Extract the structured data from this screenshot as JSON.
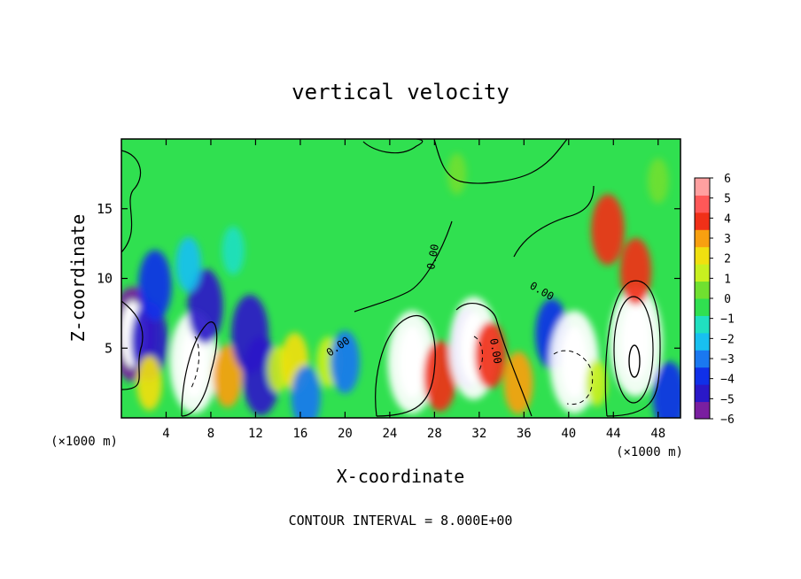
{
  "chart_data": {
    "type": "heatmap",
    "title": "vertical velocity",
    "xlabel": "X-coordinate",
    "ylabel": "Z-coordinate",
    "x_unit": "(×1000 m)",
    "z_unit": "(×1000 m)",
    "xlim": [
      0,
      50
    ],
    "zlim": [
      0,
      20
    ],
    "x_ticks": [
      4,
      8,
      12,
      16,
      20,
      24,
      28,
      32,
      36,
      40,
      44,
      48
    ],
    "z_ticks": [
      5,
      10,
      15
    ],
    "colorbar": {
      "ticks": [
        6,
        5,
        4,
        3,
        2,
        1,
        0,
        -1,
        -2,
        -3,
        -4,
        -5,
        -6
      ],
      "range": [
        -6,
        6
      ],
      "colors": [
        "#7a1fa0",
        "#2a18c8",
        "#1030e8",
        "#1a78f0",
        "#18c0f0",
        "#20e0c0",
        "#30e050",
        "#70e030",
        "#c8f020",
        "#f0e010",
        "#f8a010",
        "#f03018",
        "#ff5858",
        "#ffa0a0"
      ]
    },
    "contour_labels": [
      "0.00",
      "0.00",
      "0.00",
      "0.00"
    ],
    "footer": "CONTOUR INTERVAL = 8.000E+00",
    "cells": [
      {
        "x": 1.0,
        "z": 6.0,
        "w": -7.0
      },
      {
        "x": 2.5,
        "z": 5.5,
        "w": -5.0
      },
      {
        "x": 3.0,
        "z": 9.5,
        "w": -4.0
      },
      {
        "x": 2.5,
        "z": 2.5,
        "w": 2.0
      },
      {
        "x": 6.5,
        "z": 4.0,
        "w": -8.0
      },
      {
        "x": 7.5,
        "z": 8.0,
        "w": -4.5
      },
      {
        "x": 6.0,
        "z": 11.0,
        "w": -2.0
      },
      {
        "x": 9.5,
        "z": 3.0,
        "w": 3.0
      },
      {
        "x": 11.5,
        "z": 6.0,
        "w": -5.0
      },
      {
        "x": 12.5,
        "z": 3.0,
        "w": -5.0
      },
      {
        "x": 14.0,
        "z": 3.5,
        "w": 1.0
      },
      {
        "x": 15.5,
        "z": 4.0,
        "w": 2.5
      },
      {
        "x": 16.5,
        "z": 1.5,
        "w": -3.0
      },
      {
        "x": 18.5,
        "z": 4.0,
        "w": 1.5
      },
      {
        "x": 20.0,
        "z": 4.0,
        "w": -3.0
      },
      {
        "x": 26.0,
        "z": 4.0,
        "w": 8.0
      },
      {
        "x": 28.5,
        "z": 3.0,
        "w": 4.0
      },
      {
        "x": 31.0,
        "z": 5.0,
        "w": -5.0
      },
      {
        "x": 31.5,
        "z": 5.0,
        "w": -8.0
      },
      {
        "x": 33.0,
        "z": 4.5,
        "w": 3.5
      },
      {
        "x": 35.5,
        "z": 2.5,
        "w": 3.0
      },
      {
        "x": 38.5,
        "z": 6.0,
        "w": -4.0
      },
      {
        "x": 40.5,
        "z": 4.0,
        "w": -8.0
      },
      {
        "x": 42.5,
        "z": 2.5,
        "w": 1.0
      },
      {
        "x": 46.0,
        "z": 5.5,
        "w": 9.0
      },
      {
        "x": 46.0,
        "z": 10.5,
        "w": 3.5
      },
      {
        "x": 43.5,
        "z": 13.5,
        "w": 4.0
      },
      {
        "x": 49.0,
        "z": 1.5,
        "w": -4.0
      },
      {
        "x": 10.0,
        "z": 12.0,
        "w": -1.2
      },
      {
        "x": 30.0,
        "z": 17.5,
        "w": 0.3
      },
      {
        "x": 48.0,
        "z": 17.0,
        "w": 0.8
      }
    ]
  }
}
